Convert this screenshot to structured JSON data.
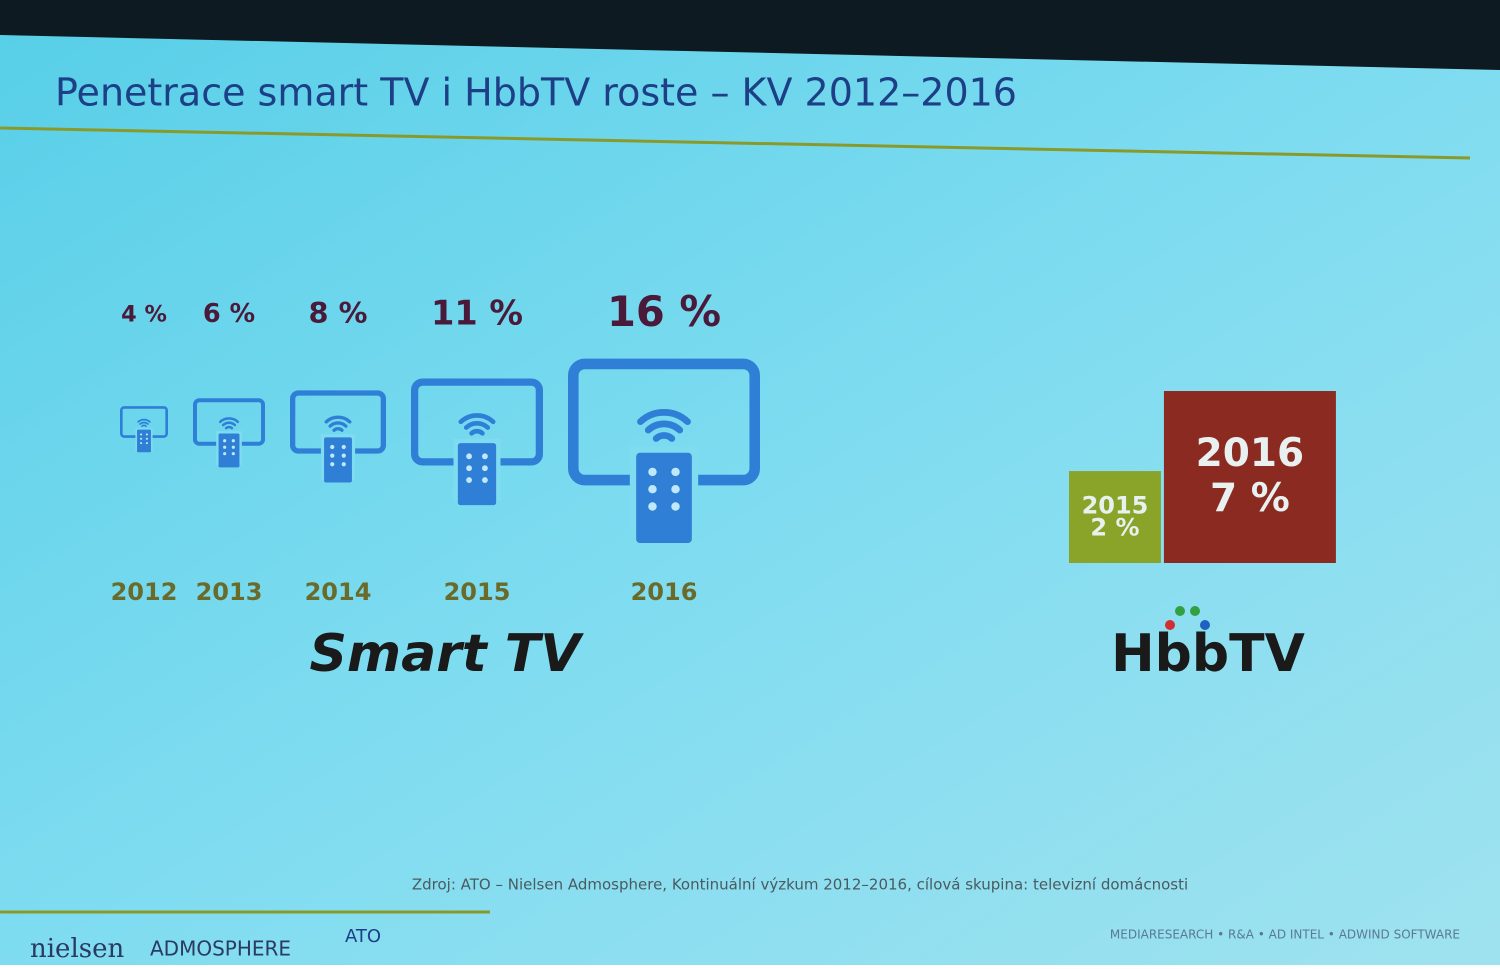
{
  "slide": {
    "title": "Penetrace smart TV i HbbTV roste – KV 2012–2016",
    "source": "Zdroj: ATO – Nielsen Admosphere, Kontinuální výzkum 2012–2016, cílová skupina: televizní domácnosti",
    "footer": {
      "left": [
        "nielsen",
        "ADMOSPHERE",
        "ATO"
      ],
      "right": "MEDIARESEARCH • R&A • AD INTEL • ADWIND SOFTWARE"
    }
  },
  "chart_data": [
    {
      "type": "icon",
      "title": "Smart TV",
      "categories": [
        "2012",
        "2013",
        "2014",
        "2015",
        "2016"
      ],
      "values": [
        4,
        6,
        8,
        11,
        16
      ],
      "value_labels": [
        "4 %",
        "6 %",
        "8 %",
        "11 %",
        "16 %"
      ],
      "color": "#2f7fd6"
    },
    {
      "type": "square",
      "title": "HbbTV",
      "categories": [
        "2015",
        "2016"
      ],
      "values": [
        2,
        7
      ],
      "value_labels": [
        "2 %",
        "7 %"
      ],
      "colors": [
        "#8aa42a",
        "#8a2a20"
      ]
    }
  ]
}
